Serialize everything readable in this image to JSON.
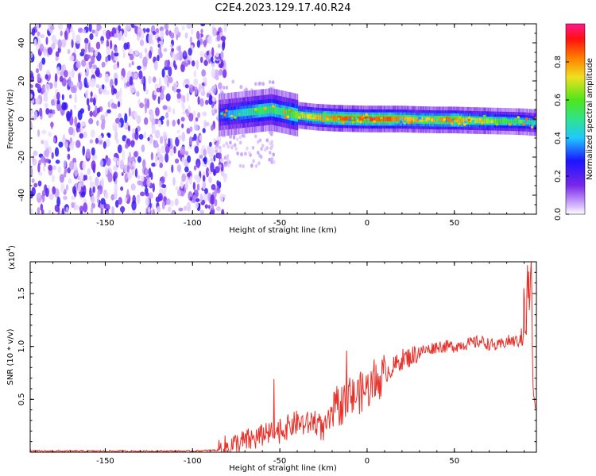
{
  "figure": {
    "title": "C2E4.2023.129.17.40.R24"
  },
  "chart_data": [
    {
      "type": "heatmap",
      "xlabel": "Height of straight line (km)",
      "ylabel": "Frequency (Hz)",
      "xlim": [
        -193,
        97
      ],
      "ylim": [
        -50,
        50
      ],
      "xticks": [
        -150,
        -100,
        -50,
        0,
        50
      ],
      "yticks": [
        -40,
        -20,
        0,
        20,
        40
      ],
      "colorbar": {
        "label": "Normalized spectral amplitude",
        "ticks": [
          "0.0",
          "0.2",
          "0.4",
          "0.6",
          "0.8"
        ],
        "range": [
          0,
          1
        ],
        "colormap": [
          "#ffffff",
          "#d9bfff",
          "#7a28e8",
          "#1c14ff",
          "#1fc8ff",
          "#2fe38c",
          "#4ee619",
          "#f0e020",
          "#ff8000",
          "#ff1010",
          "#ff1a8c"
        ]
      },
      "ridge": {
        "description_points_x": [
          -85,
          -75,
          -65,
          -55,
          -50,
          -40,
          -30,
          -20,
          -10,
          0,
          10,
          20,
          30,
          40,
          50,
          60,
          70,
          80,
          90,
          97
        ],
        "frequency_hz": [
          2,
          3,
          4,
          5,
          4,
          2,
          1,
          0.5,
          0.2,
          0,
          0,
          0,
          -0.3,
          -0.5,
          -0.5,
          -0.8,
          -1,
          -1.2,
          -1.5,
          -2
        ],
        "amplitude": [
          0.35,
          0.45,
          0.55,
          0.6,
          0.55,
          0.7,
          0.8,
          0.9,
          0.95,
          0.95,
          0.95,
          0.85,
          0.8,
          0.85,
          0.9,
          0.75,
          0.7,
          0.6,
          0.55,
          0.5
        ]
      },
      "noise_region_x": [
        -193,
        -85
      ],
      "grid": false
    },
    {
      "type": "line",
      "xlabel": "Height of straight line (km)",
      "ylabel": "SNR (10 * v/v)",
      "exponent_label": "(x10",
      "exponent_power": "4",
      "exponent_close": ")",
      "xlim": [
        -193,
        97
      ],
      "ylim": [
        0,
        1.8
      ],
      "xticks": [
        -150,
        -100,
        -50,
        0,
        50
      ],
      "yticks": [
        "0.5",
        "1.0",
        "1.5"
      ],
      "ytick_values": [
        0.5,
        1.0,
        1.5
      ],
      "series": [
        {
          "color": "#e8312a",
          "x": [
            -193,
            -150,
            -100,
            -85,
            -80,
            -70,
            -60,
            -50,
            -45,
            -40,
            -35,
            -30,
            -25,
            -20,
            -15,
            -10,
            -5,
            0,
            5,
            10,
            15,
            20,
            25,
            30,
            35,
            40,
            45,
            50,
            55,
            60,
            65,
            70,
            75,
            80,
            85,
            90,
            93,
            94,
            95,
            97
          ],
          "y": [
            0.01,
            0.01,
            0.01,
            0.02,
            0.05,
            0.1,
            0.15,
            0.2,
            0.24,
            0.28,
            0.26,
            0.3,
            0.2,
            0.35,
            0.45,
            0.5,
            0.55,
            0.6,
            0.65,
            0.75,
            0.8,
            0.88,
            0.9,
            0.95,
            0.97,
            1.0,
            1.0,
            1.0,
            1.02,
            1.03,
            1.05,
            1.02,
            1.0,
            1.05,
            1.05,
            1.05,
            1.3,
            1.8,
            0.6,
            0.4
          ]
        }
      ],
      "grid": false
    }
  ]
}
